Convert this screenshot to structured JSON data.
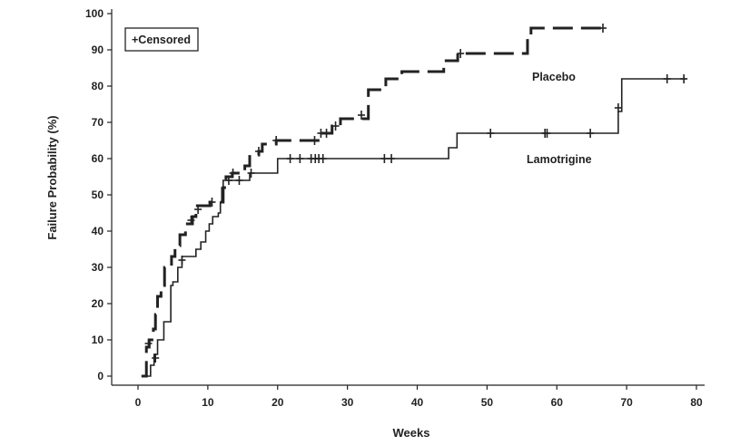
{
  "chart_data": {
    "type": "line",
    "step": true,
    "xlabel": "Weeks",
    "ylabel": "Failure Probability (%)",
    "xlim": [
      0,
      80
    ],
    "ylim": [
      0,
      100
    ],
    "xticks": [
      0,
      10,
      20,
      30,
      40,
      50,
      60,
      70,
      80
    ],
    "yticks": [
      0,
      10,
      20,
      30,
      40,
      50,
      60,
      70,
      80,
      90,
      100
    ],
    "grid": false,
    "legend": {
      "text": "+Censored",
      "placement": "top-left"
    },
    "series": [
      {
        "name": "Placebo",
        "style": "dashed",
        "steps": [
          [
            0.5,
            0
          ],
          [
            1.2,
            8
          ],
          [
            1.6,
            10
          ],
          [
            2.2,
            13
          ],
          [
            2.5,
            17
          ],
          [
            2.8,
            22
          ],
          [
            3.3,
            25
          ],
          [
            3.8,
            30
          ],
          [
            4.8,
            33
          ],
          [
            5.3,
            36
          ],
          [
            6.0,
            39
          ],
          [
            6.8,
            42
          ],
          [
            7.8,
            44
          ],
          [
            8.3,
            47
          ],
          [
            9.8,
            47
          ],
          [
            10.3,
            48
          ],
          [
            11.3,
            48
          ],
          [
            12.2,
            52
          ],
          [
            12.6,
            55
          ],
          [
            13.5,
            56
          ],
          [
            15.3,
            58
          ],
          [
            16.0,
            61
          ],
          [
            17.3,
            62
          ],
          [
            17.8,
            64
          ],
          [
            19.8,
            65
          ],
          [
            25.8,
            67
          ],
          [
            27.8,
            69
          ],
          [
            29.0,
            71
          ],
          [
            33.0,
            79
          ],
          [
            34.5,
            79
          ],
          [
            35.5,
            82
          ],
          [
            37.8,
            84
          ],
          [
            43.8,
            87
          ],
          [
            45.8,
            89
          ],
          [
            55.8,
            93
          ],
          [
            56.3,
            96
          ],
          [
            67.3,
            96
          ]
        ],
        "censored": [
          [
            1.5,
            9
          ],
          [
            7.6,
            43
          ],
          [
            8.6,
            46
          ],
          [
            10.6,
            48
          ],
          [
            13.6,
            56
          ],
          [
            17.3,
            62
          ],
          [
            19.8,
            65
          ],
          [
            25.3,
            65
          ],
          [
            26.2,
            67
          ],
          [
            27.0,
            67
          ],
          [
            28.3,
            69
          ],
          [
            32.0,
            72
          ],
          [
            46.2,
            89
          ],
          [
            66.6,
            96
          ]
        ]
      },
      {
        "name": "Lamotrigine",
        "style": "solid",
        "steps": [
          [
            0.5,
            0
          ],
          [
            1.5,
            0
          ],
          [
            1.8,
            3
          ],
          [
            2.3,
            6
          ],
          [
            2.8,
            10
          ],
          [
            3.7,
            15
          ],
          [
            4.7,
            25
          ],
          [
            5.0,
            26
          ],
          [
            5.7,
            30
          ],
          [
            6.3,
            33
          ],
          [
            8.3,
            35
          ],
          [
            9.0,
            37
          ],
          [
            9.7,
            40
          ],
          [
            10.2,
            42
          ],
          [
            10.7,
            44
          ],
          [
            11.5,
            45
          ],
          [
            11.8,
            48
          ],
          [
            12.0,
            52
          ],
          [
            12.2,
            54
          ],
          [
            16.0,
            56
          ],
          [
            20.0,
            60
          ],
          [
            44.5,
            63
          ],
          [
            45.7,
            67
          ],
          [
            68.8,
            73
          ],
          [
            69.3,
            82
          ],
          [
            78.5,
            82
          ]
        ],
        "censored": [
          [
            2.5,
            5
          ],
          [
            6.3,
            32
          ],
          [
            13.0,
            54
          ],
          [
            14.5,
            54
          ],
          [
            16.2,
            56
          ],
          [
            21.8,
            60
          ],
          [
            23.2,
            60
          ],
          [
            24.8,
            60
          ],
          [
            25.4,
            60
          ],
          [
            25.9,
            60
          ],
          [
            26.5,
            60
          ],
          [
            35.3,
            60
          ],
          [
            36.3,
            60
          ],
          [
            50.5,
            67
          ],
          [
            58.3,
            67
          ],
          [
            58.6,
            67
          ],
          [
            64.8,
            67
          ],
          [
            68.8,
            74
          ],
          [
            75.8,
            82
          ],
          [
            78.2,
            82
          ]
        ]
      }
    ]
  }
}
